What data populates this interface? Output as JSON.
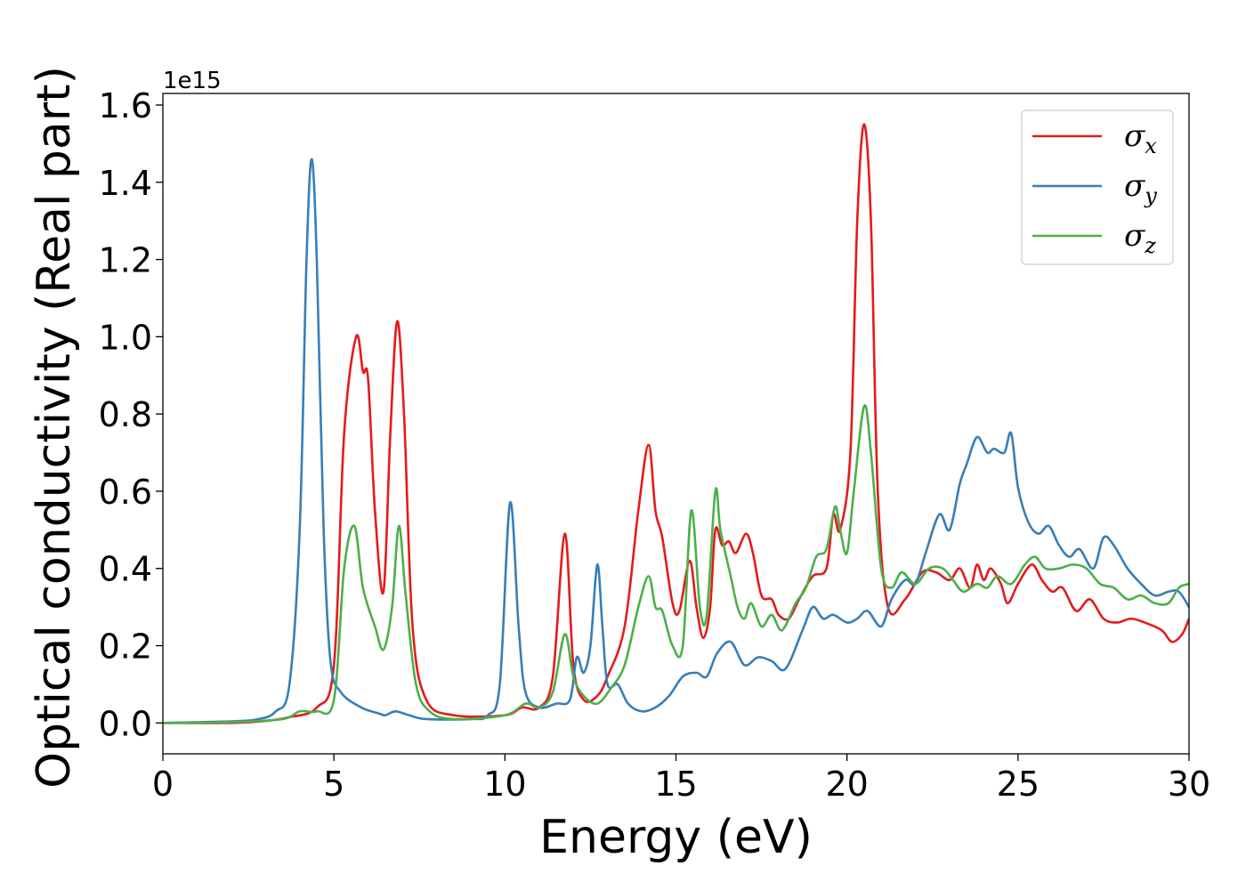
{
  "chart_data": {
    "type": "line",
    "xlabel": "Energy (eV)",
    "ylabel": "Optical conductivity (Real part)",
    "y_offset_label": "1e15",
    "xlim": [
      0,
      30
    ],
    "ylim": [
      -0.08,
      1.63
    ],
    "xticks": [
      0,
      5,
      10,
      15,
      20,
      25,
      30
    ],
    "yticks": [
      0.0,
      0.2,
      0.4,
      0.6,
      0.8,
      1.0,
      1.2,
      1.4,
      1.6
    ],
    "xtick_labels": [
      "0",
      "5",
      "10",
      "15",
      "20",
      "25",
      "30"
    ],
    "ytick_labels": [
      "0.0",
      "0.2",
      "0.4",
      "0.6",
      "0.8",
      "1.0",
      "1.2",
      "1.4",
      "1.6"
    ],
    "grid": false,
    "legend_position": "top-right",
    "series": [
      {
        "name": "σx",
        "symbol": "σ",
        "subscript": "x",
        "color": "#e41a1c",
        "points": [
          [
            0,
            0
          ],
          [
            2,
            0
          ],
          [
            3,
            0.005
          ],
          [
            3.7,
            0.015
          ],
          [
            4.5,
            0.04
          ],
          [
            5.0,
            0.15
          ],
          [
            5.3,
            0.75
          ],
          [
            5.65,
            1.0
          ],
          [
            5.85,
            0.91
          ],
          [
            6.0,
            0.89
          ],
          [
            6.2,
            0.55
          ],
          [
            6.45,
            0.34
          ],
          [
            6.65,
            0.75
          ],
          [
            6.85,
            1.04
          ],
          [
            7.05,
            0.8
          ],
          [
            7.3,
            0.25
          ],
          [
            7.7,
            0.06
          ],
          [
            8.5,
            0.02
          ],
          [
            10,
            0.02
          ],
          [
            10.5,
            0.04
          ],
          [
            11.0,
            0.04
          ],
          [
            11.4,
            0.12
          ],
          [
            11.75,
            0.49
          ],
          [
            12.0,
            0.15
          ],
          [
            12.3,
            0.06
          ],
          [
            12.7,
            0.07
          ],
          [
            13.0,
            0.12
          ],
          [
            13.5,
            0.25
          ],
          [
            13.9,
            0.55
          ],
          [
            14.2,
            0.72
          ],
          [
            14.4,
            0.55
          ],
          [
            14.6,
            0.48
          ],
          [
            14.9,
            0.31
          ],
          [
            15.1,
            0.29
          ],
          [
            15.4,
            0.42
          ],
          [
            15.6,
            0.3
          ],
          [
            15.8,
            0.22
          ],
          [
            16.0,
            0.3
          ],
          [
            16.15,
            0.5
          ],
          [
            16.35,
            0.46
          ],
          [
            16.55,
            0.47
          ],
          [
            16.75,
            0.44
          ],
          [
            17.05,
            0.49
          ],
          [
            17.25,
            0.44
          ],
          [
            17.5,
            0.33
          ],
          [
            17.8,
            0.32
          ],
          [
            18.0,
            0.28
          ],
          [
            18.3,
            0.27
          ],
          [
            18.6,
            0.32
          ],
          [
            19.0,
            0.38
          ],
          [
            19.4,
            0.4
          ],
          [
            19.6,
            0.54
          ],
          [
            19.8,
            0.5
          ],
          [
            20.1,
            0.7
          ],
          [
            20.3,
            1.3
          ],
          [
            20.5,
            1.55
          ],
          [
            20.7,
            1.3
          ],
          [
            20.9,
            0.6
          ],
          [
            21.2,
            0.3
          ],
          [
            21.7,
            0.32
          ],
          [
            22.2,
            0.39
          ],
          [
            22.6,
            0.39
          ],
          [
            23.0,
            0.37
          ],
          [
            23.3,
            0.4
          ],
          [
            23.6,
            0.35
          ],
          [
            23.8,
            0.41
          ],
          [
            24.0,
            0.37
          ],
          [
            24.2,
            0.4
          ],
          [
            24.5,
            0.36
          ],
          [
            24.7,
            0.31
          ],
          [
            25.0,
            0.36
          ],
          [
            25.4,
            0.41
          ],
          [
            25.7,
            0.37
          ],
          [
            26.0,
            0.34
          ],
          [
            26.3,
            0.35
          ],
          [
            26.7,
            0.29
          ],
          [
            27.1,
            0.32
          ],
          [
            27.5,
            0.27
          ],
          [
            27.9,
            0.26
          ],
          [
            28.3,
            0.27
          ],
          [
            28.7,
            0.26
          ],
          [
            29.2,
            0.24
          ],
          [
            29.5,
            0.21
          ],
          [
            29.8,
            0.23
          ],
          [
            30,
            0.27
          ]
        ]
      },
      {
        "name": "σy",
        "symbol": "σ",
        "subscript": "y",
        "color": "#377eb8",
        "points": [
          [
            0,
            0
          ],
          [
            2,
            0.004
          ],
          [
            2.8,
            0.01
          ],
          [
            3.3,
            0.03
          ],
          [
            3.7,
            0.1
          ],
          [
            4.0,
            0.5
          ],
          [
            4.2,
            1.2
          ],
          [
            4.35,
            1.46
          ],
          [
            4.5,
            1.2
          ],
          [
            4.7,
            0.5
          ],
          [
            4.9,
            0.16
          ],
          [
            5.2,
            0.08
          ],
          [
            5.8,
            0.04
          ],
          [
            6.3,
            0.025
          ],
          [
            6.5,
            0.02
          ],
          [
            6.8,
            0.03
          ],
          [
            7.2,
            0.02
          ],
          [
            7.7,
            0.01
          ],
          [
            9.0,
            0.01
          ],
          [
            9.5,
            0.02
          ],
          [
            9.85,
            0.1
          ],
          [
            10.15,
            0.57
          ],
          [
            10.4,
            0.25
          ],
          [
            10.6,
            0.08
          ],
          [
            11.0,
            0.04
          ],
          [
            11.5,
            0.05
          ],
          [
            11.9,
            0.06
          ],
          [
            12.1,
            0.17
          ],
          [
            12.3,
            0.13
          ],
          [
            12.5,
            0.2
          ],
          [
            12.7,
            0.41
          ],
          [
            12.85,
            0.25
          ],
          [
            13.0,
            0.1
          ],
          [
            13.3,
            0.1
          ],
          [
            13.6,
            0.05
          ],
          [
            14.0,
            0.03
          ],
          [
            14.4,
            0.04
          ],
          [
            14.8,
            0.07
          ],
          [
            15.2,
            0.12
          ],
          [
            15.6,
            0.13
          ],
          [
            15.9,
            0.12
          ],
          [
            16.2,
            0.18
          ],
          [
            16.6,
            0.21
          ],
          [
            17.0,
            0.15
          ],
          [
            17.4,
            0.17
          ],
          [
            17.8,
            0.16
          ],
          [
            18.2,
            0.14
          ],
          [
            18.7,
            0.24
          ],
          [
            19.0,
            0.3
          ],
          [
            19.3,
            0.27
          ],
          [
            19.6,
            0.28
          ],
          [
            20.0,
            0.26
          ],
          [
            20.3,
            0.27
          ],
          [
            20.6,
            0.29
          ],
          [
            21.0,
            0.25
          ],
          [
            21.3,
            0.32
          ],
          [
            21.7,
            0.37
          ],
          [
            22.0,
            0.36
          ],
          [
            22.3,
            0.44
          ],
          [
            22.7,
            0.54
          ],
          [
            23.0,
            0.5
          ],
          [
            23.3,
            0.62
          ],
          [
            23.5,
            0.67
          ],
          [
            23.8,
            0.74
          ],
          [
            24.1,
            0.7
          ],
          [
            24.3,
            0.71
          ],
          [
            24.6,
            0.7
          ],
          [
            24.8,
            0.75
          ],
          [
            25.0,
            0.61
          ],
          [
            25.3,
            0.52
          ],
          [
            25.6,
            0.49
          ],
          [
            25.9,
            0.51
          ],
          [
            26.2,
            0.46
          ],
          [
            26.5,
            0.43
          ],
          [
            26.8,
            0.45
          ],
          [
            27.2,
            0.4
          ],
          [
            27.5,
            0.48
          ],
          [
            27.8,
            0.46
          ],
          [
            28.2,
            0.4
          ],
          [
            28.6,
            0.36
          ],
          [
            29.0,
            0.33
          ],
          [
            29.4,
            0.34
          ],
          [
            29.7,
            0.34
          ],
          [
            30,
            0.3
          ]
        ]
      },
      {
        "name": "σz",
        "symbol": "σ",
        "subscript": "z",
        "color": "#4daf4a",
        "points": [
          [
            0,
            0
          ],
          [
            2,
            0.002
          ],
          [
            3.5,
            0.01
          ],
          [
            4.0,
            0.03
          ],
          [
            4.5,
            0.03
          ],
          [
            5.0,
            0.06
          ],
          [
            5.3,
            0.4
          ],
          [
            5.6,
            0.51
          ],
          [
            5.85,
            0.35
          ],
          [
            6.2,
            0.25
          ],
          [
            6.45,
            0.19
          ],
          [
            6.7,
            0.3
          ],
          [
            6.9,
            0.51
          ],
          [
            7.1,
            0.33
          ],
          [
            7.4,
            0.1
          ],
          [
            7.8,
            0.03
          ],
          [
            8.5,
            0.01
          ],
          [
            10.0,
            0.02
          ],
          [
            10.6,
            0.05
          ],
          [
            11.0,
            0.04
          ],
          [
            11.4,
            0.08
          ],
          [
            11.75,
            0.23
          ],
          [
            12.0,
            0.12
          ],
          [
            12.3,
            0.07
          ],
          [
            12.7,
            0.05
          ],
          [
            13.1,
            0.09
          ],
          [
            13.5,
            0.15
          ],
          [
            13.9,
            0.3
          ],
          [
            14.2,
            0.38
          ],
          [
            14.4,
            0.3
          ],
          [
            14.6,
            0.29
          ],
          [
            14.9,
            0.2
          ],
          [
            15.2,
            0.2
          ],
          [
            15.45,
            0.55
          ],
          [
            15.7,
            0.3
          ],
          [
            15.9,
            0.28
          ],
          [
            16.15,
            0.6
          ],
          [
            16.3,
            0.5
          ],
          [
            16.6,
            0.38
          ],
          [
            16.8,
            0.3
          ],
          [
            17.0,
            0.27
          ],
          [
            17.2,
            0.31
          ],
          [
            17.5,
            0.25
          ],
          [
            17.8,
            0.28
          ],
          [
            18.1,
            0.24
          ],
          [
            18.5,
            0.31
          ],
          [
            18.8,
            0.35
          ],
          [
            19.1,
            0.43
          ],
          [
            19.4,
            0.45
          ],
          [
            19.65,
            0.56
          ],
          [
            19.8,
            0.5
          ],
          [
            20.0,
            0.44
          ],
          [
            20.2,
            0.6
          ],
          [
            20.5,
            0.82
          ],
          [
            20.7,
            0.7
          ],
          [
            21.0,
            0.4
          ],
          [
            21.3,
            0.35
          ],
          [
            21.6,
            0.39
          ],
          [
            22.0,
            0.36
          ],
          [
            22.4,
            0.4
          ],
          [
            22.8,
            0.4
          ],
          [
            23.1,
            0.37
          ],
          [
            23.4,
            0.34
          ],
          [
            23.8,
            0.36
          ],
          [
            24.1,
            0.35
          ],
          [
            24.4,
            0.38
          ],
          [
            24.8,
            0.36
          ],
          [
            25.2,
            0.41
          ],
          [
            25.5,
            0.43
          ],
          [
            25.8,
            0.4
          ],
          [
            26.2,
            0.4
          ],
          [
            26.6,
            0.41
          ],
          [
            27.0,
            0.4
          ],
          [
            27.4,
            0.36
          ],
          [
            27.8,
            0.35
          ],
          [
            28.2,
            0.32
          ],
          [
            28.6,
            0.33
          ],
          [
            29.0,
            0.31
          ],
          [
            29.4,
            0.31
          ],
          [
            29.7,
            0.35
          ],
          [
            30,
            0.36
          ]
        ]
      }
    ]
  }
}
